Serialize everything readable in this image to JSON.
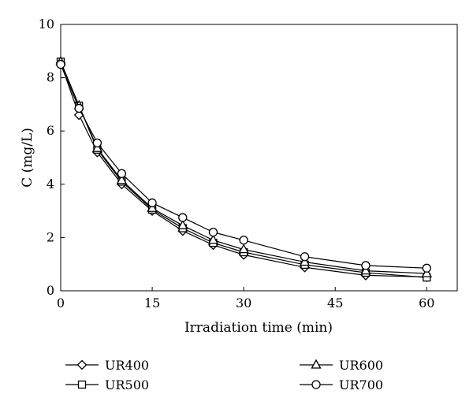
{
  "chart_data": {
    "type": "line",
    "title": "",
    "xlabel": "Irradiation time (min)",
    "ylabel": "C (mg/L)",
    "xlim": [
      0,
      65
    ],
    "ylim": [
      0,
      10
    ],
    "xticks": [
      0,
      15,
      30,
      45,
      60
    ],
    "yticks": [
      0,
      2,
      4,
      6,
      8,
      10
    ],
    "grid": false,
    "legend_position": "bottom",
    "x": [
      0,
      3,
      6,
      10,
      15,
      20,
      25,
      30,
      40,
      50,
      60
    ],
    "series": [
      {
        "name": "UR400",
        "marker": "diamond",
        "values": [
          8.55,
          6.6,
          5.2,
          4.0,
          3.0,
          2.25,
          1.72,
          1.35,
          0.88,
          0.58,
          0.52
        ]
      },
      {
        "name": "UR500",
        "marker": "square",
        "values": [
          8.6,
          6.95,
          5.3,
          4.1,
          3.05,
          2.35,
          1.8,
          1.45,
          0.98,
          0.68,
          0.5
        ]
      },
      {
        "name": "UR600",
        "marker": "triangle",
        "values": [
          8.6,
          6.95,
          5.35,
          4.15,
          3.1,
          2.45,
          1.9,
          1.55,
          1.08,
          0.75,
          0.65
        ]
      },
      {
        "name": "UR700",
        "marker": "circle",
        "values": [
          8.5,
          6.85,
          5.55,
          4.4,
          3.3,
          2.75,
          2.2,
          1.9,
          1.28,
          0.95,
          0.85
        ]
      }
    ]
  }
}
